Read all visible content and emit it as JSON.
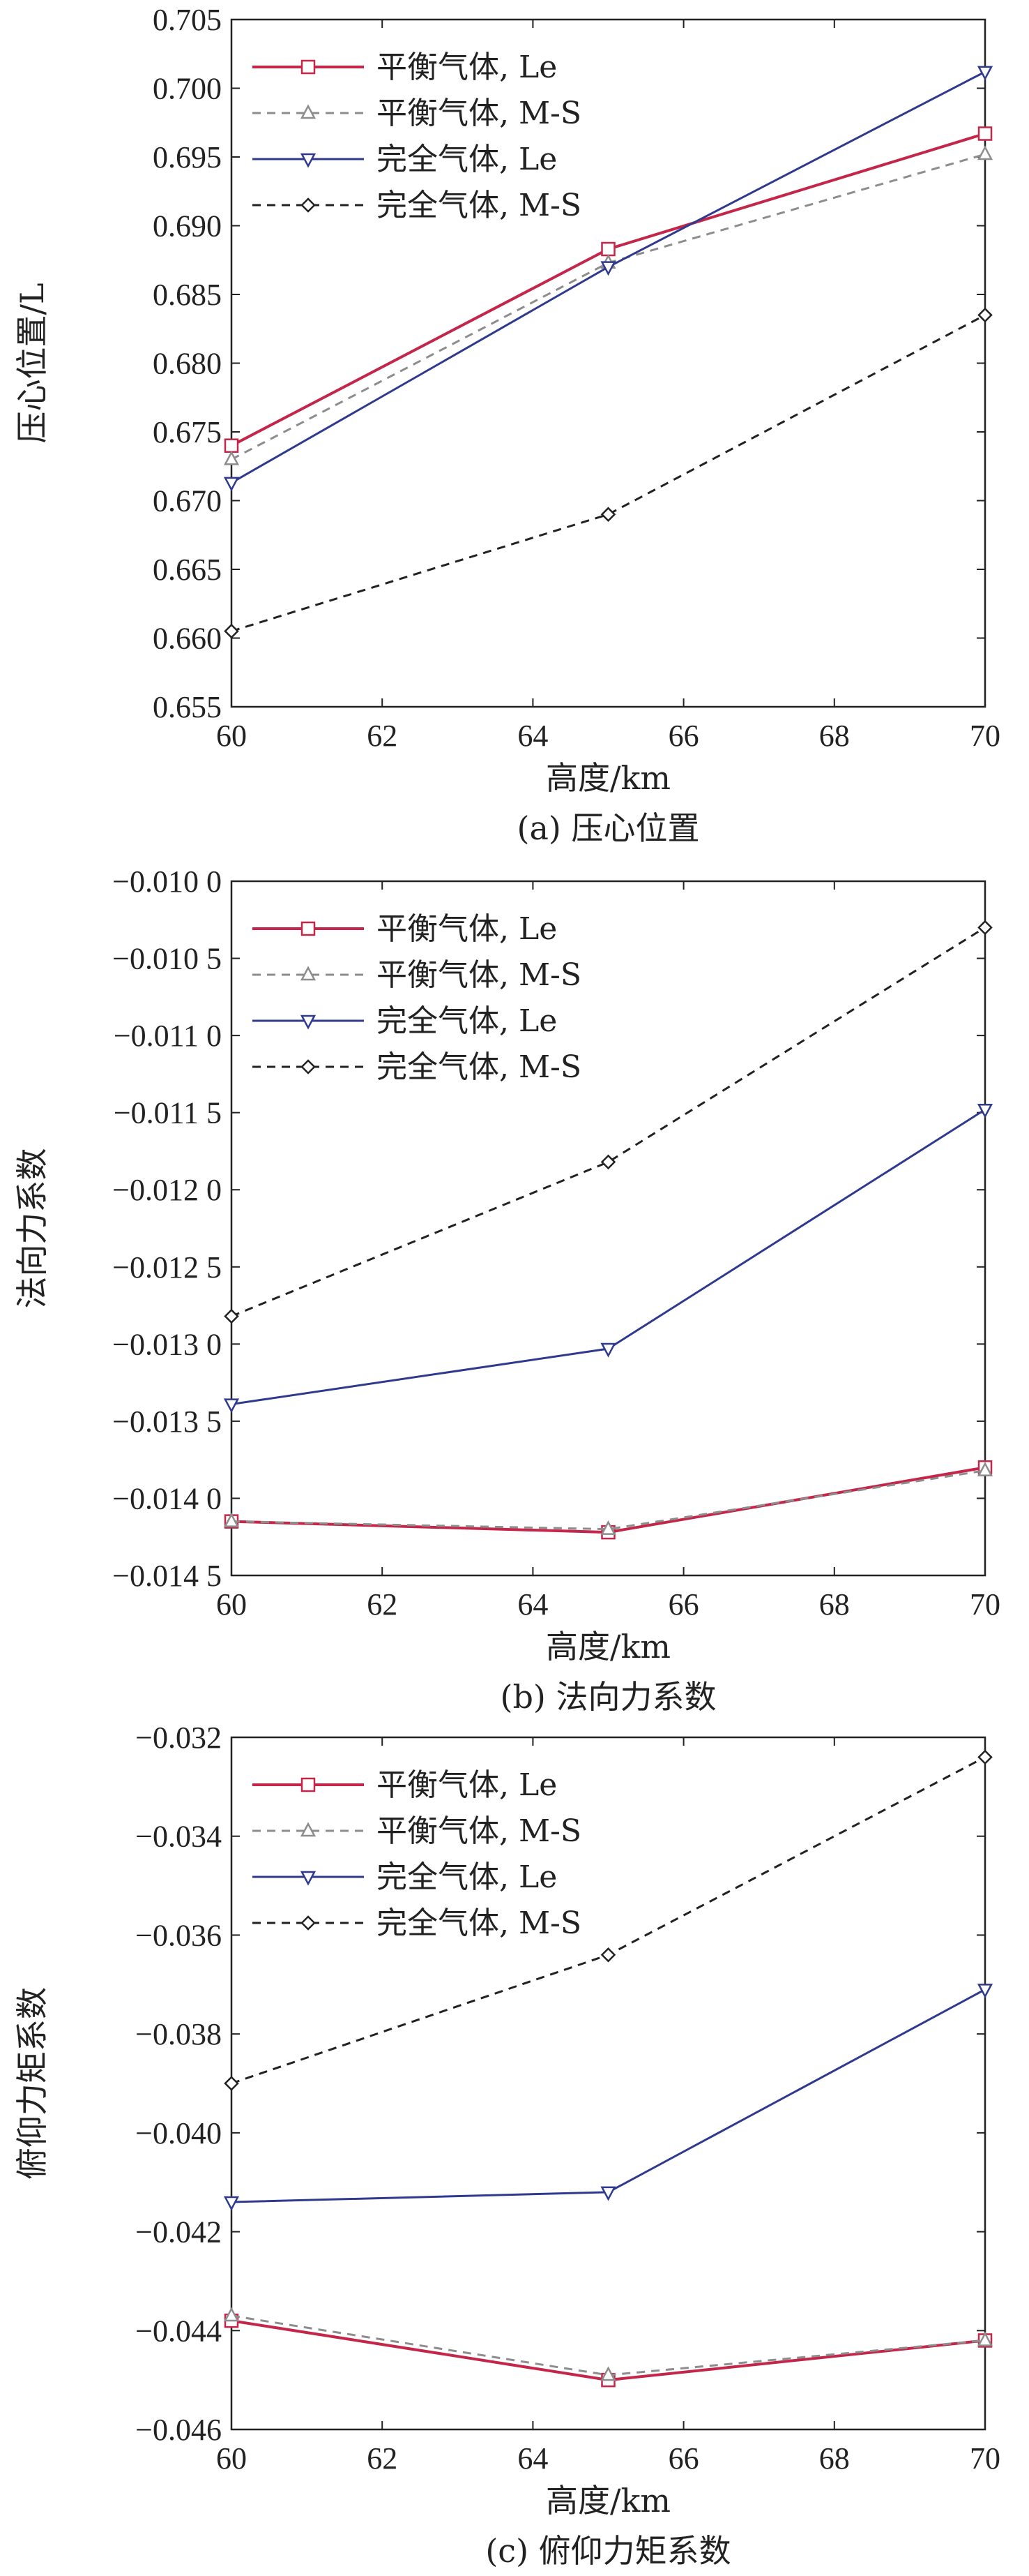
{
  "figure": {
    "legend_entries": [
      "平衡气体, Le",
      "平衡气体, M-S",
      "完全气体, Le",
      "完全气体, M-S"
    ]
  },
  "series_styles": [
    {
      "name": "平衡气体, Le",
      "color": "#c4264a",
      "dash": "solid",
      "marker": "square",
      "width": 4
    },
    {
      "name": "平衡气体, M-S",
      "color": "#8d8d8d",
      "dash": "dashed",
      "marker": "triangle-up",
      "width": 3
    },
    {
      "name": "完全气体, Le",
      "color": "#2f3a8f",
      "dash": "solid",
      "marker": "triangle-down",
      "width": 3
    },
    {
      "name": "完全气体, M-S",
      "color": "#222222",
      "dash": "dashed",
      "marker": "diamond",
      "width": 3
    }
  ],
  "chart_data": [
    {
      "type": "line",
      "caption": "(a) 压心位置",
      "xlabel": "高度/km",
      "ylabel": "压心位置/L",
      "xlim": [
        60,
        70
      ],
      "ylim": [
        0.655,
        0.705
      ],
      "xticks": [
        60,
        62,
        64,
        66,
        68,
        70
      ],
      "xtick_labels": [
        "60",
        "62",
        "64",
        "66",
        "68",
        "70"
      ],
      "yticks": [
        0.655,
        0.66,
        0.665,
        0.67,
        0.675,
        0.68,
        0.685,
        0.69,
        0.695,
        0.7,
        0.705
      ],
      "ytick_labels": [
        "0.655",
        "0.660",
        "0.665",
        "0.670",
        "0.675",
        "0.680",
        "0.685",
        "0.690",
        "0.695",
        "0.700",
        "0.705"
      ],
      "grid": false,
      "legend": "top-left",
      "x": [
        60,
        65,
        70
      ],
      "series": [
        {
          "name": "平衡气体, Le",
          "values": [
            0.674,
            0.6883,
            0.6967
          ]
        },
        {
          "name": "平衡气体, M-S",
          "values": [
            0.673,
            0.6873,
            0.6952
          ]
        },
        {
          "name": "完全气体, Le",
          "values": [
            0.6713,
            0.687,
            0.7012
          ]
        },
        {
          "name": "完全气体, M-S",
          "values": [
            0.6605,
            0.669,
            0.6835
          ]
        }
      ]
    },
    {
      "type": "line",
      "caption": "(b) 法向力系数",
      "xlabel": "高度/km",
      "ylabel": "法向力系数",
      "xlim": [
        60,
        70
      ],
      "ylim": [
        -0.0145,
        -0.01
      ],
      "xticks": [
        60,
        62,
        64,
        66,
        68,
        70
      ],
      "xtick_labels": [
        "60",
        "62",
        "64",
        "66",
        "68",
        "70"
      ],
      "yticks": [
        -0.0145,
        -0.014,
        -0.0135,
        -0.013,
        -0.0125,
        -0.012,
        -0.0115,
        -0.011,
        -0.0105,
        -0.01
      ],
      "ytick_labels": [
        "−0.014 5",
        "−0.014 0",
        "−0.013 5",
        "−0.013 0",
        "−0.012 5",
        "−0.012 0",
        "−0.011 5",
        "−0.011 0",
        "−0.010 5",
        "−0.010 0"
      ],
      "grid": false,
      "legend": "top-left",
      "x": [
        60,
        65,
        70
      ],
      "series": [
        {
          "name": "平衡气体, Le",
          "values": [
            -0.01415,
            -0.01422,
            -0.0138
          ]
        },
        {
          "name": "平衡气体, M-S",
          "values": [
            -0.01415,
            -0.0142,
            -0.01382
          ]
        },
        {
          "name": "完全气体, Le",
          "values": [
            -0.01339,
            -0.01303,
            -0.01148
          ]
        },
        {
          "name": "完全气体, M-S",
          "values": [
            -0.01282,
            -0.01182,
            -0.0103
          ]
        }
      ]
    },
    {
      "type": "line",
      "caption": "(c) 俯仰力矩系数",
      "xlabel": "高度/km",
      "ylabel": "俯仰力矩系数",
      "xlim": [
        60,
        70
      ],
      "ylim": [
        -0.046,
        -0.032
      ],
      "xticks": [
        60,
        62,
        64,
        66,
        68,
        70
      ],
      "xtick_labels": [
        "60",
        "62",
        "64",
        "66",
        "68",
        "70"
      ],
      "yticks": [
        -0.046,
        -0.044,
        -0.042,
        -0.04,
        -0.038,
        -0.036,
        -0.034,
        -0.032
      ],
      "ytick_labels": [
        "−0.046",
        "−0.044",
        "−0.042",
        "−0.040",
        "−0.038",
        "−0.036",
        "−0.034",
        "−0.032"
      ],
      "grid": false,
      "legend": "top-left",
      "x": [
        60,
        65,
        70
      ],
      "series": [
        {
          "name": "平衡气体, Le",
          "values": [
            -0.0438,
            -0.045,
            -0.0442
          ]
        },
        {
          "name": "平衡气体, M-S",
          "values": [
            -0.0437,
            -0.0449,
            -0.0442
          ]
        },
        {
          "name": "完全气体, Le",
          "values": [
            -0.0414,
            -0.0412,
            -0.0371
          ]
        },
        {
          "name": "完全气体, M-S",
          "values": [
            -0.039,
            -0.0364,
            -0.0324
          ]
        }
      ]
    }
  ]
}
